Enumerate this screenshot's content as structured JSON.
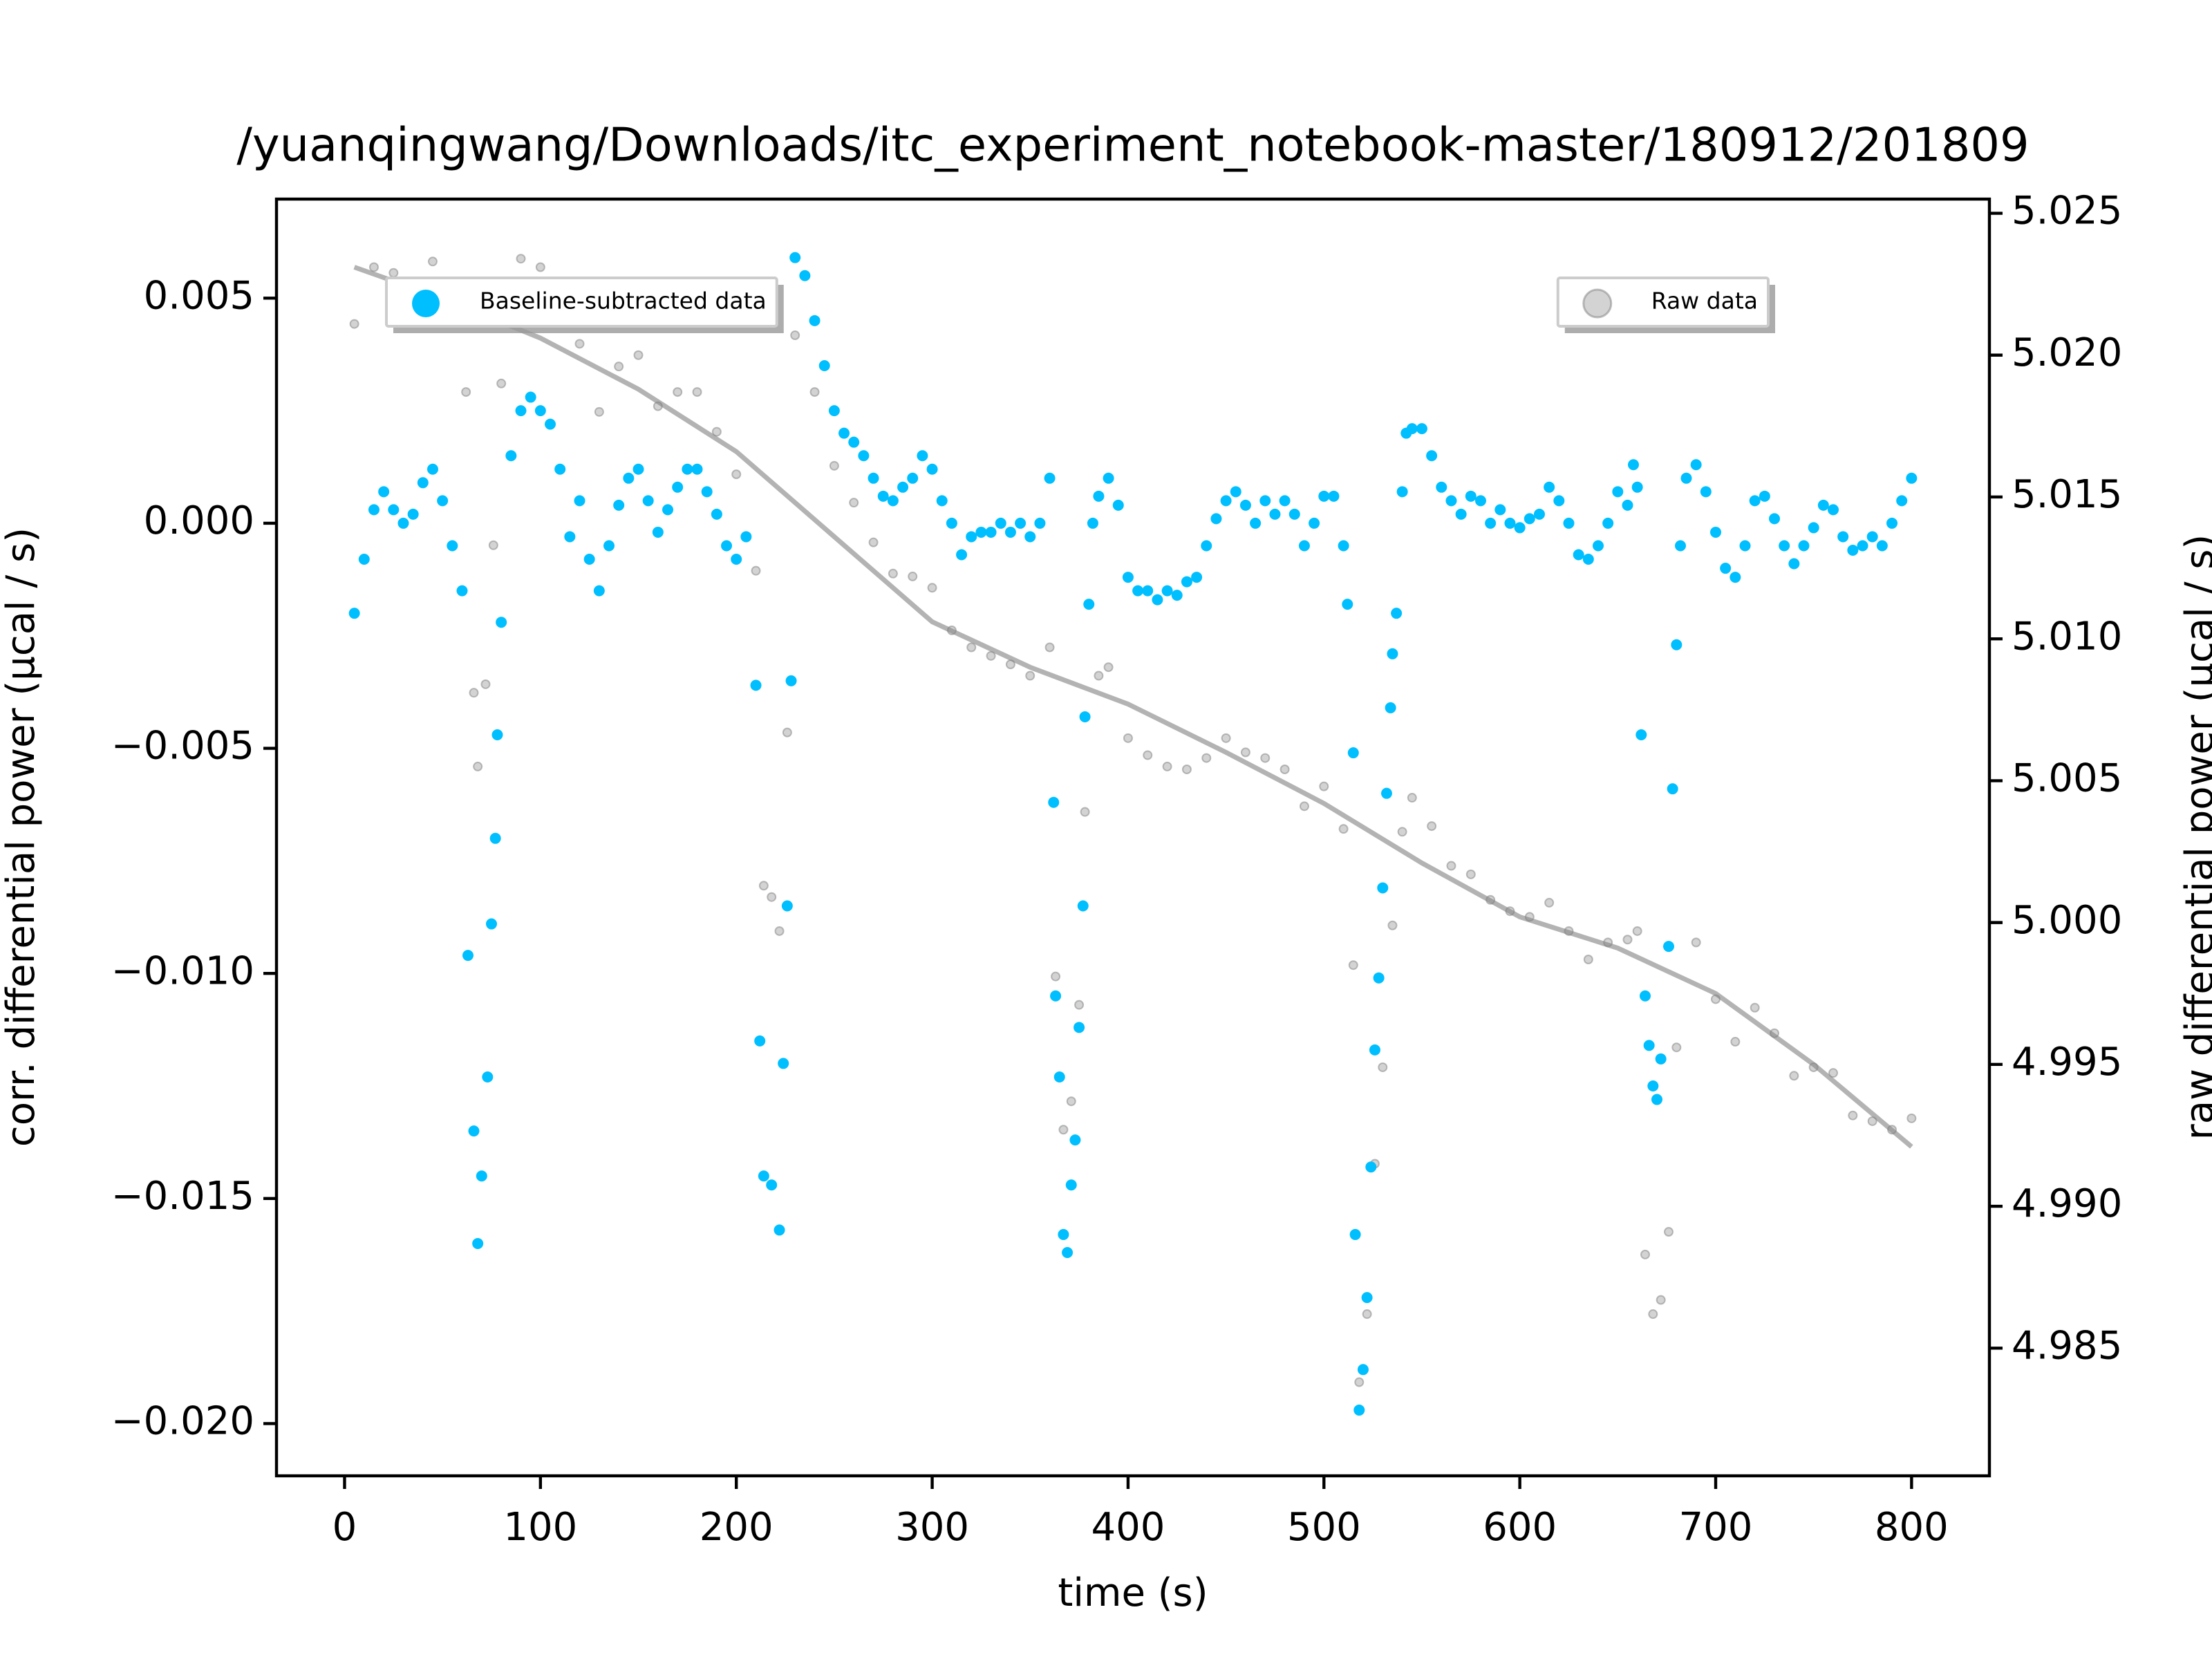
{
  "chart_data": {
    "type": "scatter",
    "title": "/yuanqingwang/Downloads/itc_experiment_notebook-master/180912/201809",
    "x_label": "time (s)",
    "y_label": "corr. differential power (μcal / s)",
    "y2_label": "raw differential power (μcal / s)",
    "xlim": [
      -34.75,
      839.75
    ],
    "xticks": [
      0,
      100,
      200,
      300,
      400,
      500,
      600,
      700,
      800
    ],
    "ylim": [
      -0.02116,
      0.0072
    ],
    "yticks": [
      {
        "value": -0.02,
        "label": "−0.020"
      },
      {
        "value": -0.015,
        "label": "−0.015"
      },
      {
        "value": -0.01,
        "label": "−0.010"
      },
      {
        "value": -0.005,
        "label": "−0.005"
      },
      {
        "value": 0,
        "label": "0.000"
      },
      {
        "value": 0.005,
        "label": "0.005"
      }
    ],
    "y2lim": [
      4.9805,
      5.0255
    ],
    "y2ticks": [
      4.985,
      {
        "value": 4.99,
        "label": "4.990"
      },
      4.995,
      {
        "value": 5.0,
        "label": "5.000"
      },
      5.005,
      {
        "value": 5.01,
        "label": "5.010"
      },
      5.015,
      {
        "value": 5.02,
        "label": "5.020"
      },
      5.025
    ],
    "baseline": {
      "color": "#808080",
      "axis": "y2",
      "x": [
        5,
        50,
        100,
        150,
        200,
        250,
        300,
        350,
        400,
        450,
        500,
        550,
        600,
        650,
        700,
        750,
        800
      ],
      "values": [
        5.0231,
        5.022,
        5.0206,
        5.0188,
        5.0166,
        5.0136,
        5.0106,
        5.009,
        5.0077,
        5.006,
        5.0042,
        5.0021,
        5.0002,
        4.9991,
        4.9975,
        4.995,
        4.9921
      ]
    },
    "series": [
      {
        "name": "Raw data",
        "color": "#808080",
        "axis": "y2",
        "legend_loc": "upper right",
        "x": [
          5,
          15,
          25,
          35,
          45,
          55,
          62,
          66,
          68,
          72,
          76,
          80,
          90,
          100,
          110,
          120,
          130,
          140,
          150,
          160,
          170,
          180,
          190,
          200,
          210,
          214,
          218,
          222,
          226,
          230,
          240,
          250,
          260,
          270,
          280,
          290,
          300,
          310,
          320,
          330,
          340,
          350,
          360,
          363,
          367,
          371,
          375,
          378,
          385,
          390,
          400,
          410,
          420,
          430,
          440,
          450,
          460,
          470,
          480,
          490,
          500,
          510,
          515,
          518,
          522,
          526,
          530,
          535,
          540,
          545,
          555,
          565,
          575,
          585,
          595,
          605,
          615,
          625,
          635,
          645,
          655,
          660,
          664,
          668,
          672,
          676,
          680,
          690,
          700,
          710,
          720,
          730,
          740,
          750,
          760,
          770,
          780,
          790,
          800
        ],
        "values": [
          5.0211,
          5.0231,
          5.0229,
          5.0226,
          5.0233,
          5.0214,
          5.0187,
          5.0081,
          5.0055,
          5.0084,
          5.0133,
          5.019,
          5.0234,
          5.0231,
          5.0214,
          5.0204,
          5.018,
          5.0196,
          5.02,
          5.0182,
          5.0187,
          5.0187,
          5.0173,
          5.0158,
          5.0124,
          5.0013,
          5.0009,
          4.9997,
          5.0067,
          5.0207,
          5.0187,
          5.0161,
          5.0148,
          5.0134,
          5.0123,
          5.0122,
          5.0118,
          5.0103,
          5.0097,
          5.0094,
          5.0091,
          5.0087,
          5.0097,
          4.9981,
          4.9927,
          4.9937,
          4.9971,
          5.0039,
          5.0087,
          5.009,
          5.0065,
          5.0059,
          5.0055,
          5.0054,
          5.0058,
          5.0065,
          5.006,
          5.0058,
          5.0054,
          5.0041,
          5.0048,
          5.0033,
          4.9985,
          4.9838,
          4.9862,
          4.9915,
          4.9949,
          4.9999,
          5.0032,
          5.0044,
          5.0034,
          5.002,
          5.0017,
          5.0008,
          5.0004,
          5.0002,
          5.0007,
          4.9997,
          4.9987,
          4.9993,
          4.9994,
          4.9997,
          4.9883,
          4.9862,
          4.9867,
          4.9891,
          4.9956,
          4.9993,
          4.9973,
          4.9958,
          4.997,
          4.9961,
          4.9946,
          4.9949,
          4.9947,
          4.9932,
          4.993,
          4.9927,
          4.9931
        ]
      },
      {
        "name": "Baseline-subtracted data",
        "color": "#00bfff",
        "legend_loc": "upper left",
        "x": [
          5,
          10,
          15,
          20,
          25,
          30,
          35,
          40,
          45,
          50,
          55,
          60,
          63,
          66,
          68,
          70,
          73,
          75,
          77,
          78,
          80,
          85,
          90,
          95,
          100,
          105,
          110,
          115,
          120,
          125,
          130,
          135,
          140,
          145,
          150,
          155,
          160,
          165,
          170,
          175,
          180,
          185,
          190,
          195,
          200,
          205,
          210,
          212,
          214,
          218,
          222,
          224,
          226,
          228,
          230,
          235,
          240,
          245,
          250,
          255,
          260,
          265,
          270,
          275,
          280,
          285,
          290,
          295,
          300,
          305,
          310,
          315,
          320,
          325,
          330,
          335,
          340,
          345,
          350,
          355,
          360,
          362,
          363,
          365,
          367,
          369,
          371,
          373,
          375,
          377,
          378,
          380,
          382,
          385,
          390,
          395,
          400,
          405,
          410,
          415,
          420,
          425,
          430,
          435,
          440,
          445,
          450,
          455,
          460,
          465,
          470,
          475,
          480,
          485,
          490,
          495,
          500,
          505,
          510,
          512,
          515,
          516,
          518,
          520,
          522,
          524,
          526,
          528,
          530,
          532,
          534,
          535,
          537,
          540,
          542,
          545,
          550,
          555,
          560,
          565,
          570,
          575,
          580,
          585,
          590,
          595,
          600,
          605,
          610,
          615,
          620,
          625,
          630,
          635,
          640,
          645,
          650,
          655,
          658,
          660,
          662,
          664,
          666,
          668,
          670,
          672,
          676,
          678,
          680,
          682,
          685,
          690,
          695,
          700,
          705,
          710,
          715,
          720,
          725,
          730,
          735,
          740,
          745,
          750,
          755,
          760,
          765,
          770,
          775,
          780,
          785,
          790,
          795,
          800
        ],
        "values": [
          -0.002,
          -0.0008,
          0.0003,
          0.0007,
          0.0003,
          0,
          0.0002,
          0.0009,
          0.0012,
          0.0005,
          -0.0005,
          -0.0015,
          -0.0096,
          -0.0135,
          -0.016,
          -0.0145,
          -0.0123,
          -0.0089,
          -0.007,
          -0.0047,
          -0.0022,
          0.0015,
          0.0025,
          0.0028,
          0.0025,
          0.0022,
          0.0012,
          -0.0003,
          0.0005,
          -0.0008,
          -0.0015,
          -0.0005,
          0.0004,
          0.001,
          0.0012,
          0.0005,
          -0.0002,
          0.0003,
          0.0008,
          0.0012,
          0.0012,
          0.0007,
          0.0002,
          -0.0005,
          -0.0008,
          -0.0003,
          -0.0036,
          -0.0115,
          -0.0145,
          -0.0147,
          -0.0157,
          -0.012,
          -0.0085,
          -0.0035,
          0.0059,
          0.0055,
          0.0045,
          0.0035,
          0.0025,
          0.002,
          0.0018,
          0.0015,
          0.001,
          0.0006,
          0.0005,
          0.0008,
          0.001,
          0.0015,
          0.0012,
          0.0005,
          0,
          -0.0007,
          -0.0003,
          -0.0002,
          -0.0002,
          0,
          -0.0002,
          0,
          -0.0003,
          0,
          0.001,
          -0.0062,
          -0.0105,
          -0.0123,
          -0.0158,
          -0.0162,
          -0.0147,
          -0.0137,
          -0.0112,
          -0.0085,
          -0.0043,
          -0.0018,
          0,
          0.0006,
          0.001,
          0.0004,
          -0.0012,
          -0.0015,
          -0.0015,
          -0.0017,
          -0.0015,
          -0.0016,
          -0.0013,
          -0.0012,
          -0.0005,
          0.0001,
          0.0005,
          0.0007,
          0.0004,
          0,
          0.0005,
          0.0002,
          0.0005,
          0.0002,
          -0.0005,
          0,
          0.0006,
          0.0006,
          -0.0005,
          -0.0018,
          -0.0051,
          -0.0158,
          -0.0197,
          -0.0188,
          -0.0172,
          -0.0143,
          -0.0117,
          -0.0101,
          -0.0081,
          -0.006,
          -0.0041,
          -0.0029,
          -0.002,
          0.0007,
          0.002,
          0.0021,
          0.0021,
          0.0015,
          0.0008,
          0.0005,
          0.0002,
          0.0006,
          0.0005,
          0,
          0.0003,
          0,
          -0.0001,
          0.0001,
          0.0002,
          0.0008,
          0.0005,
          0,
          -0.0007,
          -0.0008,
          -0.0005,
          0,
          0.0007,
          0.0004,
          0.0013,
          0.0008,
          -0.0047,
          -0.0105,
          -0.0116,
          -0.0125,
          -0.0128,
          -0.0119,
          -0.0094,
          -0.0059,
          -0.0027,
          -0.0005,
          0.001,
          0.0013,
          0.0007,
          -0.0002,
          -0.001,
          -0.0012,
          -0.0005,
          0.0005,
          0.0006,
          0.0001,
          -0.0005,
          -0.0009,
          -0.0005,
          -0.0001,
          0.0004,
          0.0003,
          -0.0003,
          -0.0006,
          -0.0005,
          -0.0003,
          -0.0005,
          0,
          0.0005,
          0.001
        ]
      }
    ]
  }
}
